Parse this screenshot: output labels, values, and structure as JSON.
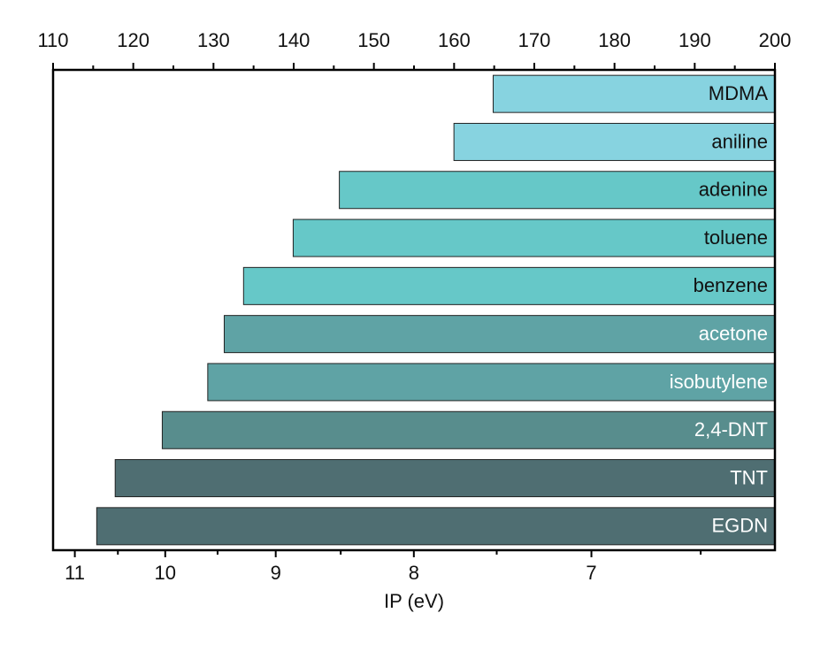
{
  "chart_data": {
    "type": "bar",
    "orientation": "horizontal",
    "categories": [
      "MDMA",
      "aniline",
      "adenine",
      "toluene",
      "benzene",
      "acetone",
      "isobutylene",
      "2,4-DNT",
      "TNT",
      "EGDN"
    ],
    "values": [
      7.52,
      7.75,
      8.51,
      8.86,
      9.27,
      9.44,
      9.59,
      10.03,
      10.53,
      10.74
    ],
    "colors": [
      "#87d3e0",
      "#87d3e0",
      "#66c8c8",
      "#66c8c8",
      "#66c8c8",
      "#5fa3a5",
      "#5fa3a5",
      "#588d8d",
      "#4f6e72",
      "#4f6e72"
    ],
    "label_colors": [
      "#111111",
      "#111111",
      "#111111",
      "#111111",
      "#111111",
      "#ffffff",
      "#ffffff",
      "#ffffff",
      "#ffffff",
      "#ffffff"
    ],
    "xlabel": "IP (eV)",
    "xticks": [
      11,
      10,
      9,
      8,
      7
    ],
    "xminorticks": [
      10.5,
      9.5,
      8.5,
      7.5,
      6.5
    ],
    "x2lim": [
      110,
      200
    ],
    "x2ticks": [
      110,
      120,
      130,
      140,
      150,
      160,
      170,
      180,
      190,
      200
    ],
    "x2minorticks": [
      115,
      125,
      135,
      145,
      155,
      165,
      175,
      185,
      195
    ]
  }
}
